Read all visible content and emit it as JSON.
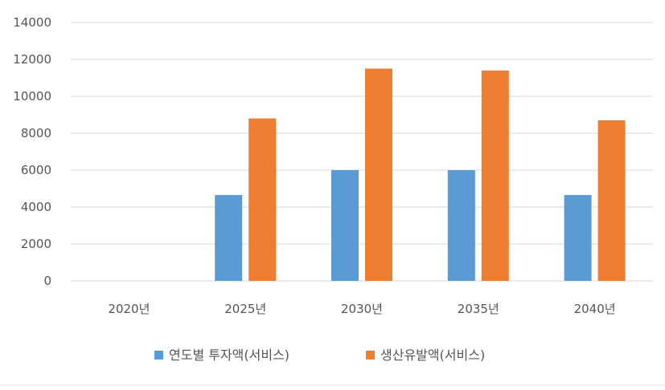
{
  "chart_data": {
    "type": "bar",
    "categories": [
      "2020년",
      "2025년",
      "2030년",
      "2035년",
      "2040년"
    ],
    "series": [
      {
        "name": "연도별 투자액(서비스)",
        "color": "#5B9BD5",
        "values": [
          0,
          4650,
          6000,
          6000,
          4650
        ]
      },
      {
        "name": "생산유발액(서비스)",
        "color": "#ED7D31",
        "values": [
          0,
          8800,
          11500,
          11400,
          8700
        ]
      }
    ],
    "y_ticks": [
      "0",
      "2000",
      "4000",
      "6000",
      "8000",
      "10000",
      "12000",
      "14000"
    ],
    "ylim": [
      0,
      14000
    ],
    "grid": "horizontal",
    "legend": "bottom"
  }
}
